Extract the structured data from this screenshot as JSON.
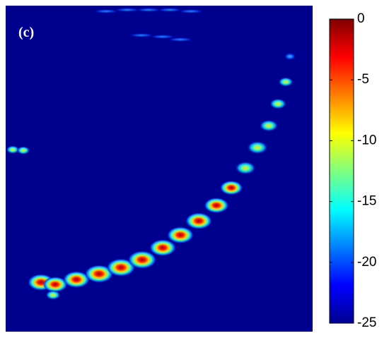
{
  "chart_data": {
    "type": "heatmap",
    "title": "(c)",
    "background_color": "#00008f",
    "colorbar": {
      "lim": [
        -25,
        0
      ],
      "ticks": [
        0,
        -5,
        -10,
        -15,
        -20,
        -25
      ]
    }
  }
}
